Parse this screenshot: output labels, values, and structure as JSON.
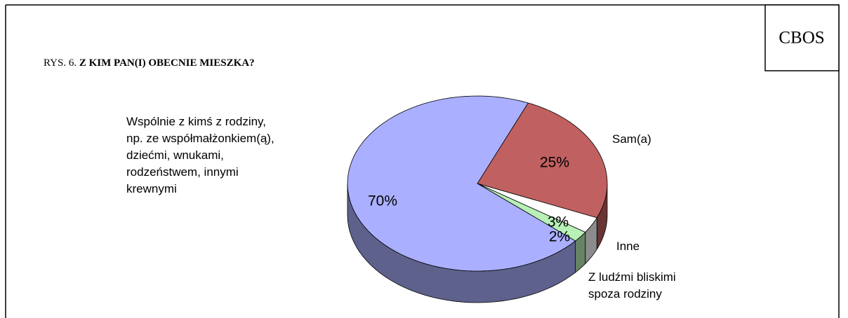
{
  "chart_data": {
    "type": "pie",
    "source": "CBOS",
    "title_prefix": "RYS. 6.",
    "title": "Z KIM PAN(I) OBECNIE MIESZKA?",
    "categories": [
      "Sam(a)",
      "Inne",
      "Z ludźmi bliskimi\nspoza rodziny",
      "Wspólnie z kimś z rodziny,\nnp. ze współmałżonkiem(ą),\ndziećmi, wnukami,\nrodzeństwem, innymi\nkrewnymi"
    ],
    "values": [
      25,
      3,
      2,
      70
    ],
    "value_labels": [
      "25%",
      "3%",
      "2%",
      "70%"
    ],
    "colors": [
      "#c06060",
      "#ffffff",
      "#b8f0b8",
      "#aab0ff"
    ]
  }
}
